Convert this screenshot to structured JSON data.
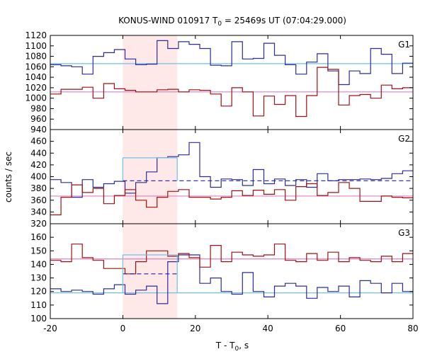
{
  "chart_data": {
    "type": "line",
    "title": "KONUS-WIND 010917 T",
    "title_sub": "0",
    "title_rest": " = 25469s UT (07:04:29.000)",
    "xlabel": "T - T",
    "xlabel_sub": "0",
    "xlabel_rest": ", s",
    "ylabel": "counts / sec",
    "xlim": [
      -20,
      80
    ],
    "x_ticks": [
      -20,
      0,
      20,
      40,
      60,
      80
    ],
    "x_tick_labels": [
      "-20",
      "0",
      "20",
      "40",
      "60",
      "80"
    ],
    "shaded_interval": [
      0,
      15
    ],
    "colors": {
      "blue": "#2b2b9b",
      "red": "#a01010",
      "pink": "#e080c0",
      "cyan": "#70c0e8",
      "shade": "#ffe8e8",
      "dashed": "#2020a0"
    },
    "bin_width": 2.944,
    "bin_start": -20,
    "panels": [
      {
        "label": "G1",
        "ylim": [
          940,
          1120
        ],
        "yticks": [
          940,
          960,
          980,
          1000,
          1020,
          1040,
          1060,
          1080,
          1100,
          1120
        ],
        "ytick_labels": [
          "940",
          "960",
          "980",
          "1000",
          "1020",
          "1040",
          "1060",
          "1080",
          "1100",
          "1120"
        ],
        "series": [
          {
            "color": "blue",
            "values": [
              1064,
              1062,
              1060,
              1046,
              1080,
              1087,
              1093,
              1075,
              1064,
              1065,
              1110,
              1095,
              1108,
              1103,
              1095,
              1063,
              1062,
              1108,
              1075,
              1076,
              1105,
              1082,
              1064,
              1046,
              1069,
              1085,
              1052,
              1026,
              1052,
              1047,
              1095,
              1084,
              1047,
              1067,
              1100,
              1060,
              1021,
              1041,
              1043,
              1054,
              1045,
              1093,
              1061,
              1046,
              1085
            ]
          },
          {
            "color": "red",
            "values": [
              1008,
              1017,
              1017,
              1021,
              1000,
              1028,
              1018,
              1015,
              1012,
              1012,
              1016,
              1017,
              1012,
              1016,
              1015,
              1008,
              985,
              1020,
              1012,
              966,
              1004,
              988,
              1005,
              965,
              1005,
              1059,
              1055,
              987,
              1005,
              1007,
              1000,
              1025,
              1018,
              1020,
              998,
              1011,
              1008,
              964,
              1006,
              1005,
              1017,
              1028,
              985,
              985,
              1017
            ]
          }
        ],
        "background_levels": [
          {
            "color": "cyan",
            "value": 1066
          },
          {
            "color": "pink",
            "value": 1012
          }
        ],
        "dashed_levels": []
      },
      {
        "label": "G2",
        "ylim": [
          320,
          480
        ],
        "yticks": [
          320,
          340,
          360,
          380,
          400,
          420,
          440,
          460
        ],
        "ytick_labels": [
          "320",
          "340",
          "360",
          "380",
          "400",
          "420",
          "440",
          "460"
        ],
        "series": [
          {
            "color": "blue",
            "values": [
              395,
              390,
              365,
              395,
              382,
              388,
              392,
              372,
              390,
              408,
              432,
              434,
              437,
              458,
              400,
              382,
              396,
              395,
              385,
              412,
              388,
              396,
              385,
              395,
              382,
              405,
              393,
              395,
              395,
              396,
              395,
              397,
              405,
              410,
              398,
              382,
              385,
              395,
              407,
              387,
              375,
              380,
              413,
              390,
              395
            ]
          },
          {
            "color": "red",
            "values": [
              335,
              365,
              386,
              373,
              380,
              354,
              368,
              378,
              360,
              348,
              365,
              375,
              378,
              365,
              365,
              362,
              365,
              376,
              368,
              377,
              370,
              378,
              360,
              383,
              388,
              368,
              373,
              390,
              380,
              358,
              358,
              367,
              365,
              364,
              375,
              350,
              366,
              375,
              360,
              355,
              372,
              360,
              357,
              335,
              365
            ]
          }
        ],
        "background_levels": [
          {
            "color": "pink",
            "value": 367
          }
        ],
        "dashed_levels": [
          {
            "color": "dashed",
            "value": 393,
            "from": 0,
            "to": 80
          },
          {
            "color": "cyan",
            "value": 432,
            "from": 0,
            "to": 15
          }
        ]
      },
      {
        "label": "G3",
        "ylim": [
          100,
          170
        ],
        "yticks": [
          100,
          110,
          120,
          130,
          140,
          150,
          160
        ],
        "ytick_labels": [
          "100",
          "110",
          "120",
          "130",
          "140",
          "150",
          "160"
        ],
        "series": [
          {
            "color": "blue",
            "values": [
              122,
              120,
              121,
              120,
              118,
              122,
              125,
              118,
              121,
              124,
              111,
              142,
              147,
              147,
              126,
              130,
              120,
              118,
              134,
              120,
              116,
              124,
              126,
              124,
              115,
              123,
              120,
              124,
              116,
              128,
              126,
              119,
              126,
              120,
              116,
              118,
              116,
              115,
              118,
              124,
              117,
              122,
              123,
              120,
              123
            ]
          },
          {
            "color": "red",
            "values": [
              143,
              142,
              155,
              145,
              143,
              137,
              137,
              133,
              142,
              150,
              150,
              146,
              148,
              145,
              138,
              154,
              142,
              149,
              147,
              146,
              147,
              155,
              143,
              142,
              148,
              143,
              149,
              142,
              145,
              143,
              142,
              146,
              142,
              148,
              145,
              148,
              140,
              145,
              141,
              143,
              140,
              148,
              150,
              151,
              138
            ]
          }
        ],
        "background_levels": [
          {
            "color": "pink",
            "value": 144
          },
          {
            "color": "cyan",
            "value": 119
          }
        ],
        "dashed_levels": [
          {
            "color": "dashed",
            "value": 133,
            "from": 0,
            "to": 15
          },
          {
            "color": "cyan",
            "value": 147,
            "from": 0,
            "to": 15
          }
        ]
      }
    ]
  }
}
